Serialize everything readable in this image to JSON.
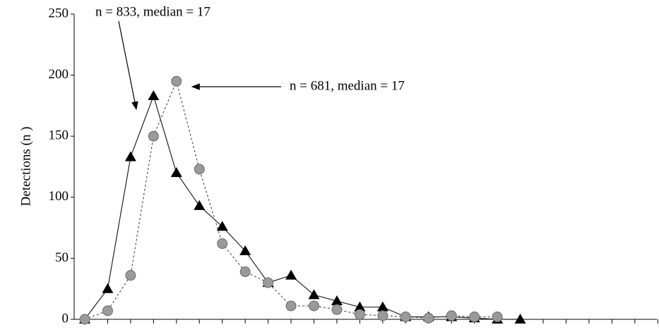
{
  "chart_data": {
    "type": "line",
    "y_label": "Detections (n )",
    "annotations": [
      "n = 833, median = 17",
      "n = 681, median = 17"
    ],
    "categories": [
      null,
      null,
      null,
      null,
      null,
      null,
      null,
      null,
      null,
      null,
      null,
      null,
      null,
      null,
      null,
      null,
      null,
      null,
      null,
      null,
      null,
      null,
      null,
      null,
      null,
      null
    ],
    "series": [
      {
        "color": "#000000",
        "marker": "triangle",
        "dash": false,
        "values": [
          0,
          25,
          133,
          183,
          120,
          93,
          76,
          56,
          30,
          36,
          20,
          15,
          10,
          10,
          2,
          2,
          2,
          1,
          0,
          0,
          null,
          null,
          null,
          null,
          null,
          null
        ]
      },
      {
        "color": "#9a9a9a",
        "marker": "circle",
        "dash": true,
        "values": [
          0,
          7,
          36,
          150,
          195,
          123,
          62,
          39,
          30,
          11,
          11,
          8,
          4,
          3,
          2,
          1,
          3,
          2,
          2,
          null,
          null,
          null,
          null,
          null,
          null,
          null
        ]
      }
    ],
    "ylim": [
      0,
      250
    ],
    "yticks": [
      0,
      50,
      100,
      150,
      200,
      250
    ],
    "grid": false
  }
}
